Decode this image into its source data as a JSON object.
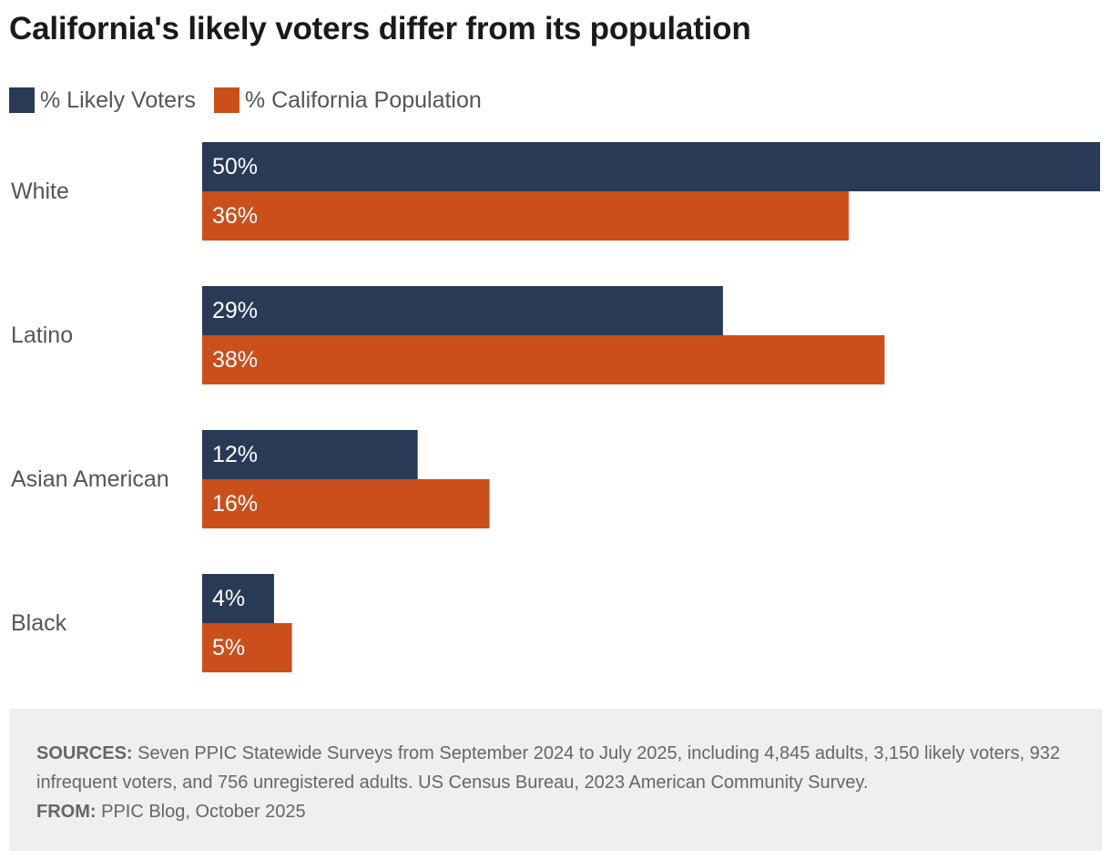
{
  "title": "California's likely voters differ from its population",
  "legend": [
    {
      "label": "% Likely Voters",
      "color": "#283a56"
    },
    {
      "label": "% California Population",
      "color": "#cb4f1b"
    }
  ],
  "chart_data": {
    "type": "bar",
    "orientation": "horizontal",
    "title": "California's likely voters differ from its population",
    "categories": [
      "White",
      "Latino",
      "Asian American",
      "Black"
    ],
    "series": [
      {
        "name": "% Likely Voters",
        "color": "#283a56",
        "values": [
          50,
          29,
          12,
          4
        ],
        "labels": [
          "50%",
          "29%",
          "12%",
          "4%"
        ]
      },
      {
        "name": "% California Population",
        "color": "#cb4f1b",
        "values": [
          36,
          38,
          16,
          5
        ],
        "labels": [
          "36%",
          "38%",
          "16%",
          "5%"
        ]
      }
    ],
    "xlim": [
      0,
      50
    ],
    "xlabel": "",
    "ylabel": "",
    "grid": false,
    "legend_position": "top-left"
  },
  "footer": {
    "sources_label": "SOURCES:",
    "sources_text": " Seven PPIC Statewide Surveys from September 2024 to July 2025, including 4,845 adults, 3,150 likely voters, 932 infrequent voters, and 756 unregistered adults. US Census Bureau, 2023 American Community Survey.",
    "from_label": "FROM:",
    "from_text": " PPIC Blog, October 2025"
  }
}
